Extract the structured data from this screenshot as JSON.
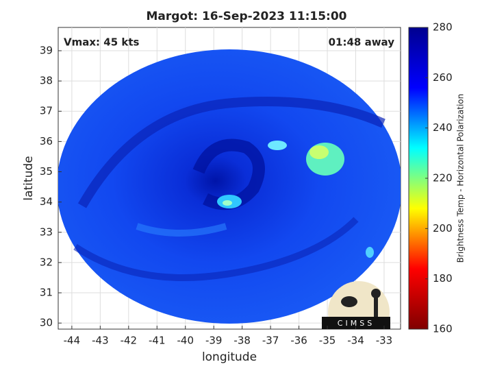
{
  "chart_data": {
    "type": "heatmap",
    "title": "Margot: 16-Sep-2023 11:15:00",
    "x_label": "longitude",
    "y_label": "latitude",
    "annotations": [
      "Vmax: 45 kts",
      "01:48 away"
    ],
    "logo_text": "CIMSS",
    "xlim": [
      -44.48,
      -32.42
    ],
    "xticks": [
      -44,
      -43,
      -42,
      -41,
      -40,
      -39,
      -38,
      -37,
      -36,
      -35,
      -34,
      -33
    ],
    "ylim": [
      29.8,
      39.77
    ],
    "yticks": [
      30,
      31,
      32,
      33,
      34,
      35,
      36,
      37,
      38,
      39
    ],
    "grid": true,
    "colorbar": {
      "label": "Brightness Temp - Horizontal Polarization",
      "clim": [
        160,
        280
      ],
      "ticks": [
        160,
        180,
        200,
        220,
        240,
        260,
        280
      ],
      "colormap": [
        "#800000",
        "#ff0000",
        "#ffff00",
        "#00ffff",
        "#0000ff",
        "#00008f"
      ]
    }
  }
}
